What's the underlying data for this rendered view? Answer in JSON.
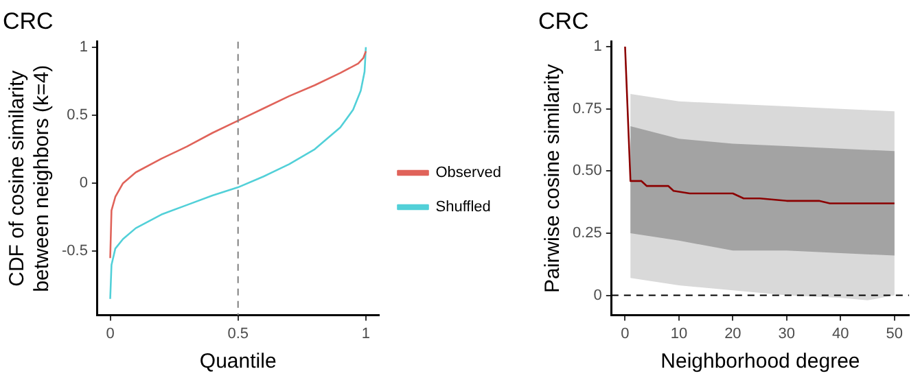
{
  "chart_data": [
    {
      "type": "line",
      "title": "CRC",
      "xlabel": "Quantile",
      "ylabel": "CDF of cosine similarity\nbetween neighbors (k=4)",
      "xlim": [
        -0.05,
        1.05
      ],
      "xticks": [
        0,
        0.5,
        1
      ],
      "ylim": [
        -0.97,
        1.04
      ],
      "yticks": [
        -0.5,
        0,
        0.5,
        1
      ],
      "grid": false,
      "legend": "right",
      "marker": "none",
      "ref_lines": [
        {
          "axis": "x",
          "value": 0.5,
          "color": "#808080",
          "line_style": "dashed"
        }
      ],
      "series": [
        {
          "name": "Observed",
          "color": "#e0635a",
          "x": [
            0,
            0.005,
            0.02,
            0.05,
            0.1,
            0.2,
            0.3,
            0.4,
            0.5,
            0.6,
            0.7,
            0.8,
            0.9,
            0.97,
            0.99,
            1
          ],
          "values": [
            -0.55,
            -0.2,
            -0.1,
            0.0,
            0.08,
            0.18,
            0.27,
            0.37,
            0.46,
            0.55,
            0.64,
            0.72,
            0.81,
            0.88,
            0.92,
            0.97
          ]
        },
        {
          "name": "Shuffled",
          "color": "#52d0d8",
          "x": [
            0,
            0.005,
            0.02,
            0.05,
            0.1,
            0.2,
            0.3,
            0.4,
            0.5,
            0.6,
            0.7,
            0.8,
            0.9,
            0.95,
            0.98,
            0.995,
            1
          ],
          "values": [
            -0.85,
            -0.6,
            -0.48,
            -0.41,
            -0.33,
            -0.23,
            -0.16,
            -0.09,
            -0.03,
            0.05,
            0.14,
            0.25,
            0.41,
            0.54,
            0.68,
            0.82,
            1.0
          ]
        }
      ]
    },
    {
      "type": "line",
      "title": "CRC",
      "xlabel": "Neighborhood degree",
      "ylabel": "Pairwise cosine similarity",
      "xlim": [
        -2.5,
        52.7
      ],
      "xticks": [
        0,
        10,
        20,
        30,
        40,
        50
      ],
      "ylim": [
        -0.08,
        1.02
      ],
      "yticks": [
        0,
        {
          "value": 0.25,
          "label": "0.25"
        },
        {
          "value": 0.5,
          "label": "0.50"
        },
        {
          "value": 0.75,
          "label": "0.75"
        },
        1
      ],
      "grid": false,
      "legend": false,
      "marker": "none",
      "ref_lines": [
        {
          "axis": "y",
          "value": 0,
          "color": "#000000",
          "line_style": "dashed"
        }
      ],
      "series": [
        {
          "color": "#d9d9d9",
          "x": [
            1,
            10,
            20,
            30,
            40,
            45,
            50
          ],
          "values": [
            null,
            null,
            null,
            null,
            null,
            null,
            null
          ],
          "upper": [
            0.81,
            0.78,
            0.77,
            0.76,
            0.75,
            0.745,
            0.74
          ],
          "lower": [
            0.07,
            0.04,
            0.02,
            0.0,
            -0.01,
            -0.02,
            0.0
          ]
        },
        {
          "color": "#a3a3a3",
          "x": [
            1,
            10,
            20,
            30,
            40,
            50
          ],
          "values": [
            null,
            null,
            null,
            null,
            null,
            null
          ],
          "upper": [
            0.68,
            0.63,
            0.61,
            0.6,
            0.59,
            0.58
          ],
          "lower": [
            0.25,
            0.22,
            0.18,
            0.18,
            0.17,
            0.16
          ]
        },
        {
          "type": "line",
          "color": "#8b0000",
          "x": [
            0,
            1,
            3,
            4,
            6,
            8,
            9,
            12,
            15,
            20,
            22,
            25,
            30,
            33,
            36,
            38,
            42,
            46,
            50
          ],
          "values": [
            1,
            0.46,
            0.46,
            0.44,
            0.44,
            0.44,
            0.42,
            0.41,
            0.41,
            0.41,
            0.39,
            0.39,
            0.38,
            0.38,
            0.38,
            0.37,
            0.37,
            0.37,
            0.37
          ]
        }
      ]
    }
  ]
}
